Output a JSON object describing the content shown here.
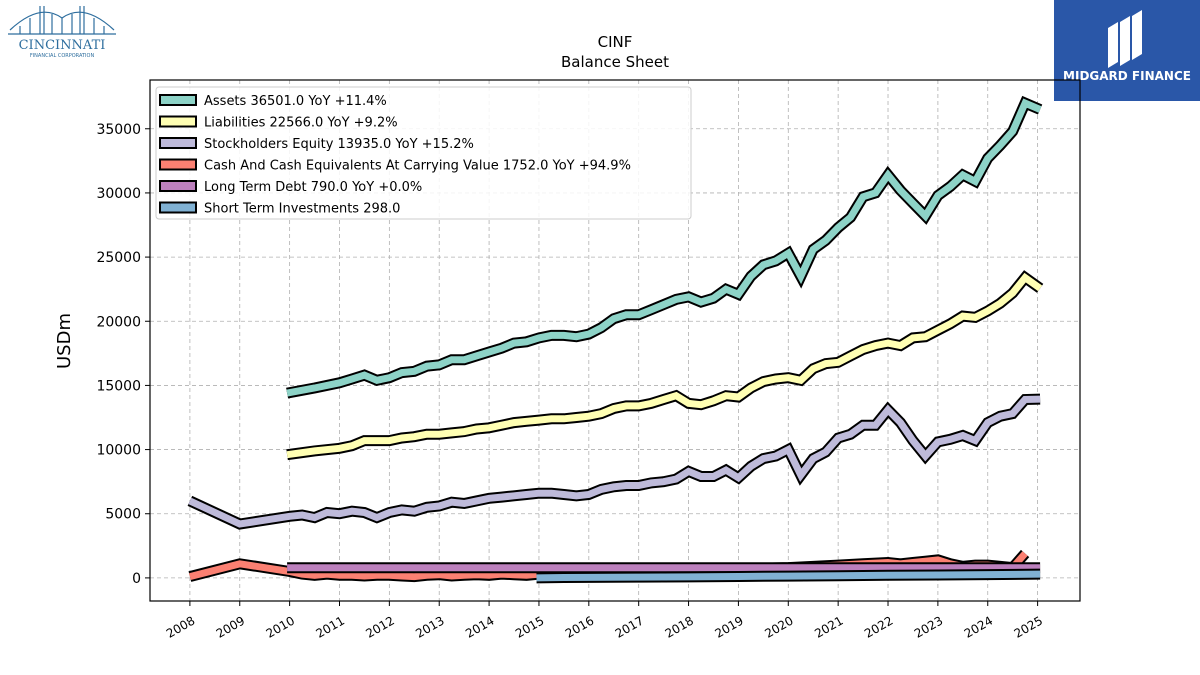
{
  "branding": {
    "left_logo_name": "CINCINNATI",
    "left_logo_sub": "FINANCIAL CORPORATION",
    "right_logo_name": "MIDGARD FINANCE",
    "right_logo_bg": "#2a57a8",
    "left_logo_color": "#2e6e9e"
  },
  "chart_data": {
    "type": "line",
    "title": "CINF",
    "subtitle": "Balance  Sheet",
    "ylabel": "USDm",
    "xlabel": "",
    "ylim": [
      -1800,
      38800
    ],
    "xlim": [
      2007.2,
      2025.85
    ],
    "yticks": [
      0,
      5000,
      10000,
      15000,
      20000,
      25000,
      30000,
      35000
    ],
    "xticks": [
      2008,
      2009,
      2010,
      2011,
      2012,
      2013,
      2014,
      2015,
      2016,
      2017,
      2018,
      2019,
      2020,
      2021,
      2022,
      2023,
      2024,
      2025
    ],
    "grid": true,
    "legend_position": "top-left",
    "series": [
      {
        "name": "Assets  36501.0 YoY +11.4%",
        "color": "#8dd3c7",
        "points": [
          [
            2009.95,
            14400
          ],
          [
            2010.5,
            14800
          ],
          [
            2011.0,
            15200
          ],
          [
            2011.25,
            15500
          ],
          [
            2011.5,
            15800
          ],
          [
            2011.75,
            15400
          ],
          [
            2012.0,
            15600
          ],
          [
            2012.25,
            16000
          ],
          [
            2012.5,
            16100
          ],
          [
            2012.75,
            16500
          ],
          [
            2013.0,
            16600
          ],
          [
            2013.25,
            17000
          ],
          [
            2013.5,
            17000
          ],
          [
            2013.75,
            17300
          ],
          [
            2014.0,
            17600
          ],
          [
            2014.25,
            17900
          ],
          [
            2014.5,
            18300
          ],
          [
            2014.75,
            18400
          ],
          [
            2015.0,
            18700
          ],
          [
            2015.25,
            18900
          ],
          [
            2015.5,
            18900
          ],
          [
            2015.75,
            18800
          ],
          [
            2016.0,
            19000
          ],
          [
            2016.25,
            19500
          ],
          [
            2016.5,
            20200
          ],
          [
            2016.75,
            20500
          ],
          [
            2017.0,
            20500
          ],
          [
            2017.25,
            20900
          ],
          [
            2017.5,
            21300
          ],
          [
            2017.75,
            21700
          ],
          [
            2018.0,
            21900
          ],
          [
            2018.25,
            21500
          ],
          [
            2018.5,
            21800
          ],
          [
            2018.75,
            22500
          ],
          [
            2019.0,
            22100
          ],
          [
            2019.25,
            23500
          ],
          [
            2019.5,
            24400
          ],
          [
            2019.75,
            24700
          ],
          [
            2020.0,
            25300
          ],
          [
            2020.25,
            23500
          ],
          [
            2020.5,
            25600
          ],
          [
            2020.75,
            26300
          ],
          [
            2021.0,
            27300
          ],
          [
            2021.25,
            28100
          ],
          [
            2021.5,
            29700
          ],
          [
            2021.75,
            30000
          ],
          [
            2022.0,
            31400
          ],
          [
            2022.25,
            30200
          ],
          [
            2022.5,
            29200
          ],
          [
            2022.75,
            28200
          ],
          [
            2023.0,
            29800
          ],
          [
            2023.25,
            30500
          ],
          [
            2023.5,
            31400
          ],
          [
            2023.75,
            30900
          ],
          [
            2024.0,
            32700
          ],
          [
            2024.25,
            33700
          ],
          [
            2024.5,
            34800
          ],
          [
            2024.75,
            37000
          ],
          [
            2025.05,
            36500
          ]
        ]
      },
      {
        "name": "Liabilities  22566.0 YoY +9.2%",
        "color": "#ffffb3",
        "points": [
          [
            2009.95,
            9600
          ],
          [
            2010.5,
            9900
          ],
          [
            2011.0,
            10100
          ],
          [
            2011.25,
            10300
          ],
          [
            2011.5,
            10700
          ],
          [
            2011.75,
            10700
          ],
          [
            2012.0,
            10700
          ],
          [
            2012.25,
            10900
          ],
          [
            2012.5,
            11000
          ],
          [
            2012.75,
            11200
          ],
          [
            2013.0,
            11200
          ],
          [
            2013.25,
            11300
          ],
          [
            2013.5,
            11400
          ],
          [
            2013.75,
            11600
          ],
          [
            2014.0,
            11700
          ],
          [
            2014.25,
            11900
          ],
          [
            2014.5,
            12100
          ],
          [
            2014.75,
            12200
          ],
          [
            2015.0,
            12300
          ],
          [
            2015.25,
            12400
          ],
          [
            2015.5,
            12400
          ],
          [
            2015.75,
            12500
          ],
          [
            2016.0,
            12600
          ],
          [
            2016.25,
            12800
          ],
          [
            2016.5,
            13200
          ],
          [
            2016.75,
            13400
          ],
          [
            2017.0,
            13400
          ],
          [
            2017.25,
            13600
          ],
          [
            2017.5,
            13900
          ],
          [
            2017.75,
            14200
          ],
          [
            2018.0,
            13600
          ],
          [
            2018.25,
            13500
          ],
          [
            2018.5,
            13800
          ],
          [
            2018.75,
            14200
          ],
          [
            2019.0,
            14100
          ],
          [
            2019.25,
            14800
          ],
          [
            2019.5,
            15300
          ],
          [
            2019.75,
            15500
          ],
          [
            2020.0,
            15600
          ],
          [
            2020.25,
            15400
          ],
          [
            2020.5,
            16300
          ],
          [
            2020.75,
            16700
          ],
          [
            2021.0,
            16800
          ],
          [
            2021.25,
            17300
          ],
          [
            2021.5,
            17800
          ],
          [
            2021.75,
            18100
          ],
          [
            2022.0,
            18300
          ],
          [
            2022.25,
            18100
          ],
          [
            2022.5,
            18700
          ],
          [
            2022.75,
            18800
          ],
          [
            2023.0,
            19300
          ],
          [
            2023.25,
            19800
          ],
          [
            2023.5,
            20400
          ],
          [
            2023.75,
            20300
          ],
          [
            2024.0,
            20800
          ],
          [
            2024.25,
            21400
          ],
          [
            2024.5,
            22200
          ],
          [
            2024.75,
            23400
          ],
          [
            2025.05,
            22566
          ]
        ]
      },
      {
        "name": "Stockholders Equity  13935.0 YoY +15.2%",
        "color": "#bebada",
        "points": [
          [
            2008.0,
            6000
          ],
          [
            2009.0,
            4200
          ],
          [
            2010.0,
            4800
          ],
          [
            2010.25,
            4900
          ],
          [
            2010.5,
            4700
          ],
          [
            2010.75,
            5100
          ],
          [
            2011.0,
            5000
          ],
          [
            2011.25,
            5200
          ],
          [
            2011.5,
            5100
          ],
          [
            2011.75,
            4700
          ],
          [
            2012.0,
            5100
          ],
          [
            2012.25,
            5300
          ],
          [
            2012.5,
            5200
          ],
          [
            2012.75,
            5500
          ],
          [
            2013.0,
            5600
          ],
          [
            2013.25,
            5900
          ],
          [
            2013.5,
            5800
          ],
          [
            2013.75,
            6000
          ],
          [
            2014.0,
            6200
          ],
          [
            2014.25,
            6300
          ],
          [
            2014.5,
            6400
          ],
          [
            2014.75,
            6500
          ],
          [
            2015.0,
            6600
          ],
          [
            2015.25,
            6600
          ],
          [
            2015.5,
            6500
          ],
          [
            2015.75,
            6400
          ],
          [
            2016.0,
            6500
          ],
          [
            2016.25,
            6900
          ],
          [
            2016.5,
            7100
          ],
          [
            2016.75,
            7200
          ],
          [
            2017.0,
            7200
          ],
          [
            2017.25,
            7400
          ],
          [
            2017.5,
            7500
          ],
          [
            2017.75,
            7700
          ],
          [
            2018.0,
            8300
          ],
          [
            2018.25,
            7900
          ],
          [
            2018.5,
            7900
          ],
          [
            2018.75,
            8400
          ],
          [
            2019.0,
            7800
          ],
          [
            2019.25,
            8700
          ],
          [
            2019.5,
            9300
          ],
          [
            2019.75,
            9500
          ],
          [
            2020.0,
            10000
          ],
          [
            2020.25,
            8000
          ],
          [
            2020.5,
            9300
          ],
          [
            2020.75,
            9800
          ],
          [
            2021.0,
            10900
          ],
          [
            2021.25,
            11200
          ],
          [
            2021.5,
            11900
          ],
          [
            2021.75,
            11900
          ],
          [
            2022.0,
            13100
          ],
          [
            2022.25,
            12100
          ],
          [
            2022.5,
            10700
          ],
          [
            2022.75,
            9500
          ],
          [
            2023.0,
            10600
          ],
          [
            2023.25,
            10800
          ],
          [
            2023.5,
            11100
          ],
          [
            2023.75,
            10700
          ],
          [
            2024.0,
            12100
          ],
          [
            2024.25,
            12600
          ],
          [
            2024.5,
            12800
          ],
          [
            2024.75,
            13900
          ],
          [
            2025.05,
            13935
          ]
        ]
      },
      {
        "name": "Cash And Cash Equivalents At Carrying Value  1752.0 YoY +94.9%",
        "color": "#fb8072",
        "points": [
          [
            2008.0,
            100
          ],
          [
            2009.0,
            1100
          ],
          [
            2010.0,
            500
          ],
          [
            2010.25,
            300
          ],
          [
            2010.5,
            200
          ],
          [
            2010.75,
            300
          ],
          [
            2011.0,
            200
          ],
          [
            2011.25,
            200
          ],
          [
            2011.5,
            150
          ],
          [
            2011.75,
            200
          ],
          [
            2012.0,
            200
          ],
          [
            2012.25,
            150
          ],
          [
            2012.5,
            100
          ],
          [
            2012.75,
            200
          ],
          [
            2013.0,
            250
          ],
          [
            2013.25,
            150
          ],
          [
            2013.5,
            200
          ],
          [
            2013.75,
            250
          ],
          [
            2014.0,
            200
          ],
          [
            2014.25,
            300
          ],
          [
            2014.5,
            250
          ],
          [
            2014.75,
            200
          ],
          [
            2015.0,
            300
          ],
          [
            2015.5,
            400
          ],
          [
            2016.0,
            500
          ],
          [
            2017.0,
            550
          ],
          [
            2018.0,
            600
          ],
          [
            2019.0,
            700
          ],
          [
            2020.0,
            800
          ],
          [
            2020.75,
            950
          ],
          [
            2021.0,
            1000
          ],
          [
            2021.5,
            1100
          ],
          [
            2022.0,
            1200
          ],
          [
            2022.25,
            1100
          ],
          [
            2022.5,
            1200
          ],
          [
            2022.75,
            1300
          ],
          [
            2023.0,
            1400
          ],
          [
            2023.25,
            1100
          ],
          [
            2023.5,
            900
          ],
          [
            2023.75,
            1000
          ],
          [
            2024.0,
            1000
          ],
          [
            2024.25,
            900
          ],
          [
            2024.5,
            800
          ],
          [
            2024.75,
            1900
          ]
        ]
      },
      {
        "name": "Long Term Debt  790.0 YoY +0.0%",
        "color": "#bc80bd",
        "points": [
          [
            2009.95,
            790
          ],
          [
            2025.05,
            790
          ]
        ]
      },
      {
        "name": "Short Term Investments  298.0",
        "color": "#80b1d3",
        "points": [
          [
            2014.95,
            0
          ],
          [
            2015.5,
            30
          ],
          [
            2016.0,
            40
          ],
          [
            2017.0,
            60
          ],
          [
            2018.0,
            80
          ],
          [
            2019.0,
            110
          ],
          [
            2020.0,
            140
          ],
          [
            2021.0,
            170
          ],
          [
            2022.0,
            200
          ],
          [
            2023.0,
            230
          ],
          [
            2024.0,
            260
          ],
          [
            2025.05,
            298
          ]
        ]
      }
    ]
  }
}
